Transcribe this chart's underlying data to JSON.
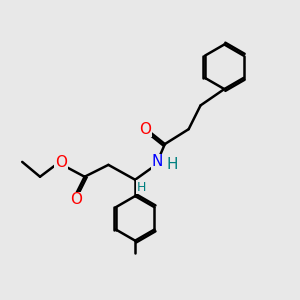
{
  "background_color": "#e8e8e8",
  "bond_color": "#000000",
  "bond_width": 1.8,
  "atom_colors": {
    "O": "#ff0000",
    "N": "#0000ff",
    "H_on_N": "#008080",
    "H_on_C": "#008080",
    "C": "#000000"
  },
  "font_size_atom": 11,
  "font_size_small": 9
}
